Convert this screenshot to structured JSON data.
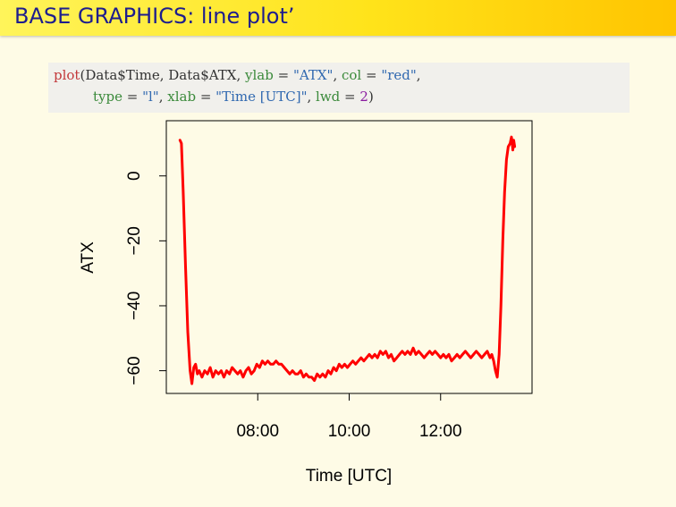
{
  "slide": {
    "title": "BASE GRAPHICS: line plot’"
  },
  "code": {
    "fn": "plot",
    "open": "(",
    "x_arg": "Data$Time",
    "sep1": ", ",
    "y_arg": "Data$ATX",
    "sep2": ", ",
    "ylab_key": "ylab",
    "ylab_val": "\"ATX\"",
    "sep3": ", ",
    "col_key": "col",
    "col_val": "\"red\"",
    "sep4": ",",
    "type_key": "type",
    "type_val": "\"l\"",
    "sep5": ", ",
    "xlab_key": "xlab",
    "xlab_val": "\"Time [UTC]\"",
    "sep6": ", ",
    "lwd_key": "lwd",
    "lwd_val": "2",
    "close": ")",
    "eq": " = "
  },
  "chart_data": {
    "type": "line",
    "xlabel": "Time [UTC]",
    "ylabel": "ATX",
    "x_unit": "hours (UTC)",
    "x_ticks": [
      8,
      10,
      12
    ],
    "x_tick_labels": [
      "08:00",
      "10:00",
      "12:00"
    ],
    "y_ticks": [
      0,
      -20,
      -40,
      -60
    ],
    "y_tick_labels": [
      "0",
      "−20",
      "−40",
      "−60"
    ],
    "xlim": [
      6.0,
      14.0
    ],
    "ylim": [
      -67,
      17
    ],
    "series": [
      {
        "color": "#ff0000",
        "x": [
          6.3,
          6.33,
          6.37,
          6.42,
          6.47,
          6.52,
          6.56,
          6.6,
          6.64,
          6.68,
          6.72,
          6.78,
          6.84,
          6.9,
          6.96,
          7.02,
          7.08,
          7.14,
          7.2,
          7.26,
          7.32,
          7.38,
          7.44,
          7.5,
          7.56,
          7.62,
          7.68,
          7.74,
          7.8,
          7.86,
          7.92,
          7.98,
          8.04,
          8.1,
          8.16,
          8.22,
          8.28,
          8.34,
          8.4,
          8.46,
          8.52,
          8.58,
          8.64,
          8.7,
          8.76,
          8.82,
          8.88,
          8.94,
          9.0,
          9.06,
          9.12,
          9.18,
          9.24,
          9.3,
          9.36,
          9.42,
          9.48,
          9.54,
          9.6,
          9.66,
          9.72,
          9.78,
          9.84,
          9.9,
          9.96,
          10.02,
          10.08,
          10.14,
          10.2,
          10.26,
          10.32,
          10.38,
          10.44,
          10.5,
          10.56,
          10.62,
          10.68,
          10.74,
          10.8,
          10.86,
          10.92,
          10.98,
          11.04,
          11.1,
          11.16,
          11.22,
          11.28,
          11.34,
          11.4,
          11.46,
          11.52,
          11.58,
          11.64,
          11.7,
          11.76,
          11.82,
          11.88,
          11.94,
          12.0,
          12.06,
          12.12,
          12.18,
          12.24,
          12.3,
          12.36,
          12.42,
          12.48,
          12.54,
          12.6,
          12.66,
          12.72,
          12.78,
          12.84,
          12.9,
          12.96,
          13.02,
          13.08,
          13.12,
          13.16,
          13.2,
          13.24,
          13.28,
          13.32,
          13.36,
          13.4,
          13.44,
          13.48,
          13.52,
          13.55,
          13.58,
          13.6,
          13.62
        ],
        "y": [
          11,
          10,
          -5,
          -28,
          -48,
          -60,
          -64,
          -59,
          -58,
          -61,
          -60,
          -62,
          -60,
          -61,
          -59,
          -62,
          -60,
          -61,
          -60,
          -62,
          -60,
          -61,
          -59,
          -60,
          -61,
          -60,
          -62,
          -60,
          -59,
          -61,
          -60,
          -58,
          -59,
          -57,
          -58,
          -57,
          -58,
          -58,
          -57,
          -58,
          -58,
          -59,
          -60,
          -61,
          -60,
          -61,
          -61,
          -60,
          -62,
          -61,
          -62,
          -62,
          -63,
          -61,
          -62,
          -61,
          -62,
          -60,
          -61,
          -59,
          -60,
          -58,
          -59,
          -58,
          -59,
          -58,
          -57,
          -58,
          -57,
          -56,
          -57,
          -56,
          -55,
          -56,
          -55,
          -56,
          -54,
          -55,
          -54,
          -56,
          -55,
          -57,
          -56,
          -55,
          -54,
          -55,
          -54,
          -55,
          -53,
          -55,
          -54,
          -55,
          -56,
          -55,
          -54,
          -55,
          -54,
          -55,
          -56,
          -55,
          -56,
          -55,
          -57,
          -56,
          -55,
          -56,
          -55,
          -54,
          -55,
          -56,
          -55,
          -54,
          -55,
          -56,
          -55,
          -54,
          -56,
          -55,
          -57,
          -60,
          -62,
          -55,
          -40,
          -20,
          -5,
          5,
          9,
          10,
          12,
          8,
          11,
          9
        ]
      }
    ]
  }
}
